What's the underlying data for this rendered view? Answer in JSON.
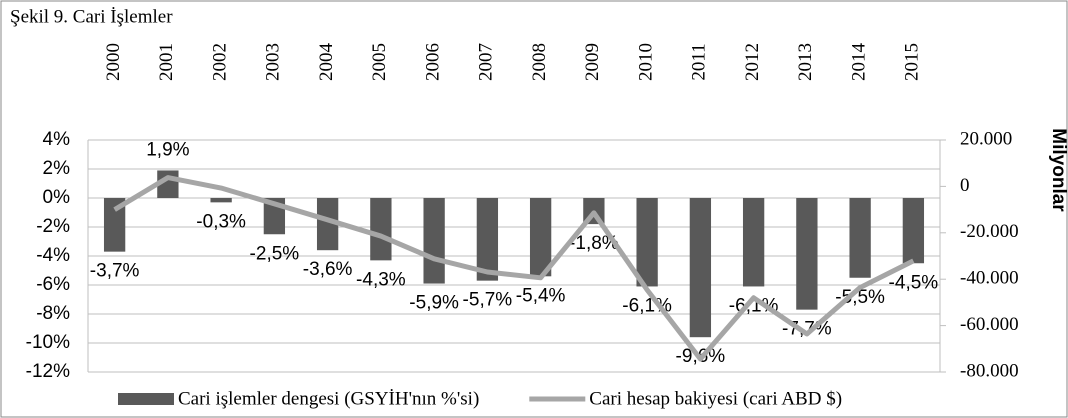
{
  "chart_data": {
    "type": "bar_line",
    "title": "Şekil 9. Cari İşlemler",
    "categories": [
      "2000",
      "2001",
      "2002",
      "2003",
      "2004",
      "2005",
      "2006",
      "2007",
      "2008",
      "2009",
      "2010",
      "2011",
      "2012",
      "2013",
      "2014",
      "2015"
    ],
    "series": [
      {
        "name": "Cari işlemler dengesi (GSYİH'nın %'si)",
        "type": "bar",
        "color": "#595959",
        "axis": "y",
        "values": [
          -3.7,
          1.9,
          -0.3,
          -2.5,
          -3.6,
          -4.3,
          -5.9,
          -5.7,
          -5.4,
          -1.8,
          -6.1,
          -9.6,
          -6.1,
          -7.7,
          -5.5,
          -4.5
        ],
        "value_labels": [
          "-3,7%",
          "1,9%",
          "-0,3%",
          "-2,5%",
          "-3,6%",
          "-4,3%",
          "-5,9%",
          "-5,7%",
          "-5,4%",
          "-1,8%",
          "-6,1%",
          "-9,6%",
          "-6,1%",
          "-7,7%",
          "-5,5%",
          "-4,5%"
        ]
      },
      {
        "name": "Cari hesap bakiyesi (cari ABD $)",
        "type": "line",
        "color": "#a6a6a6",
        "axis": "y2",
        "values": [
          -10000,
          3800,
          -700,
          -7500,
          -14400,
          -21400,
          -31200,
          -36900,
          -39400,
          -11400,
          -44600,
          -74400,
          -48000,
          -63600,
          -43600,
          -32100
        ]
      }
    ],
    "y2label": "Milyonlar",
    "ylim": [
      -12,
      4
    ],
    "yticks": [
      {
        "value": -12,
        "label": "-12%"
      },
      {
        "value": -10,
        "label": "-10%"
      },
      {
        "value": -8,
        "label": "-8%"
      },
      {
        "value": -6,
        "label": "-6%"
      },
      {
        "value": -4,
        "label": "-4%"
      },
      {
        "value": -2,
        "label": "-2%"
      },
      {
        "value": 0,
        "label": "0%"
      },
      {
        "value": 2,
        "label": "2%"
      },
      {
        "value": 4,
        "label": "4%"
      }
    ],
    "y2lim": [
      -80000,
      20000
    ],
    "y2ticks": [
      {
        "value": -80000,
        "label": "-80.000"
      },
      {
        "value": -60000,
        "label": "-60.000"
      },
      {
        "value": -40000,
        "label": "-40.000"
      },
      {
        "value": -20000,
        "label": "-20.000"
      },
      0,
      {
        "value": 20000,
        "label": "20.000"
      }
    ],
    "grid": true
  }
}
